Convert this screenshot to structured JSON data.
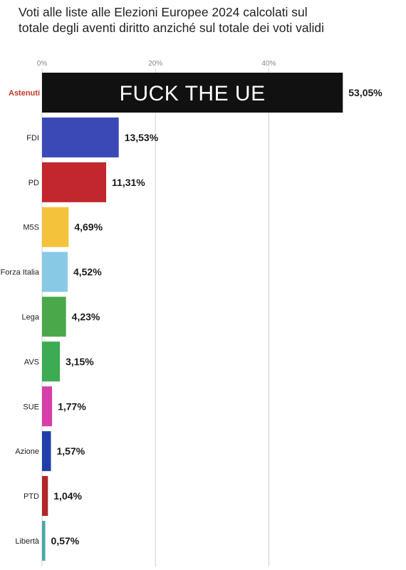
{
  "header": {
    "title_line1": "Voti alle liste alle Elezioni Europee 2024 calcolati sul",
    "title_line2": "totale degli aventi diritto anziché sul totale dei voti validi"
  },
  "overlay": {
    "text": "FUCK THE UE"
  },
  "colors": {
    "astenuti": "#111111",
    "highlight_label": "#c0392b"
  },
  "chart_data": {
    "type": "bar",
    "orientation": "horizontal",
    "title": "Voti alle liste alle Elezioni Europee 2024 calcolati sul totale degli aventi diritto anziché sul totale dei voti validi",
    "xlim": [
      0,
      53.05
    ],
    "xticks": [
      0,
      20,
      40
    ],
    "xtick_labels": [
      "0%",
      "20%",
      "40%"
    ],
    "grid": true,
    "categories": [
      "Astenuti",
      "FDI",
      "PD",
      "M5S",
      "Forza Italia",
      "Lega",
      "AVS",
      "SUE",
      "Azione",
      "PTD",
      "Libertà"
    ],
    "values": [
      53.05,
      13.53,
      11.31,
      4.69,
      4.52,
      4.23,
      3.15,
      1.77,
      1.57,
      1.04,
      0.57
    ],
    "value_labels": [
      "53,05%",
      "13,53%",
      "11,31%",
      "4,69%",
      "4,52%",
      "4,23%",
      "3,15%",
      "1,77%",
      "1,57%",
      "1,04%",
      "0,57%"
    ],
    "bar_colors": [
      "#111111",
      "#3a49b5",
      "#c1272d",
      "#f5c33b",
      "#88c9e6",
      "#4aa84a",
      "#3dab52",
      "#d63ea9",
      "#1f3ea8",
      "#b0262a",
      "#4aa6a6"
    ]
  }
}
